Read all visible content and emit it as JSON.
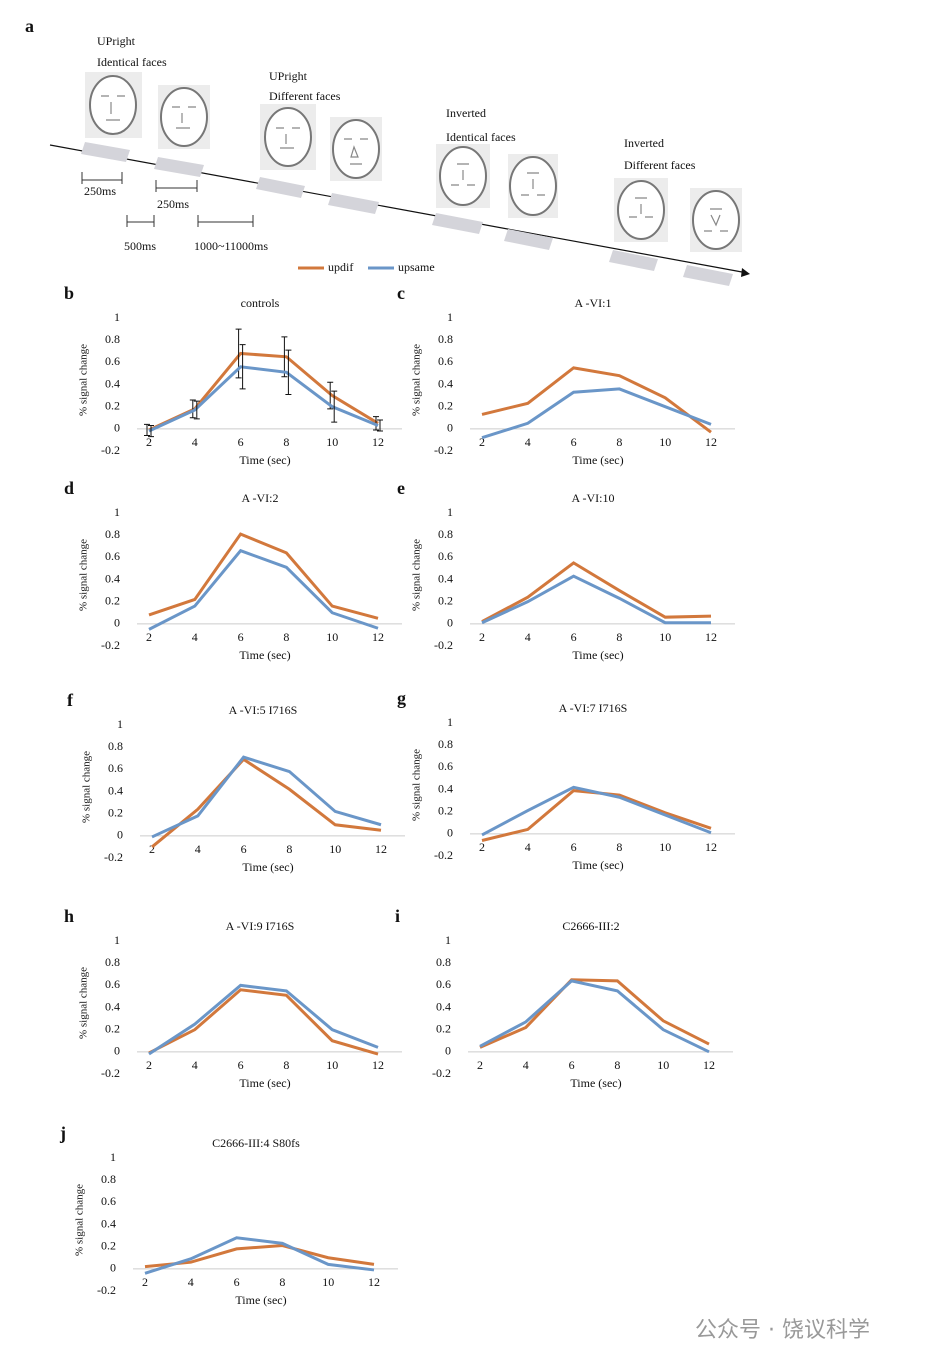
{
  "panel_a": {
    "label": "a",
    "conditions": [
      {
        "line1": "UPright",
        "line2": "Identical faces"
      },
      {
        "line1": "UPright",
        "line2": "Different faces"
      },
      {
        "line1": "Inverted",
        "line2": "Identical faces"
      },
      {
        "line1": "Inverted",
        "line2": "Different faces"
      }
    ],
    "timings": [
      "250ms",
      "250ms",
      "500ms",
      "1000~11000ms"
    ]
  },
  "legend": [
    {
      "name": "updif",
      "color": "#d2783c"
    },
    {
      "name": "upsame",
      "color": "#6a96c8"
    }
  ],
  "watermark": "公众号 · 饶议科学",
  "chart_data": [
    {
      "type": "line",
      "label": "b",
      "title": "controls",
      "xlabel": "Time (sec)",
      "ylabel": "% signal change",
      "categories": [
        "2",
        "4",
        "6",
        "8",
        "10",
        "12"
      ],
      "ylim": [
        -0.2,
        1
      ],
      "yticks": [
        -0.2,
        0,
        0.2,
        0.4,
        0.6,
        0.8,
        1
      ],
      "series": [
        {
          "values": [
            -0.01,
            0.18,
            0.68,
            0.65,
            0.3,
            0.05
          ],
          "errors": [
            0.05,
            0.08,
            0.22,
            0.18,
            0.12,
            0.06
          ]
        },
        {
          "values": [
            -0.02,
            0.17,
            0.56,
            0.51,
            0.2,
            0.03
          ],
          "errors": [
            0.05,
            0.08,
            0.2,
            0.2,
            0.14,
            0.05
          ]
        }
      ]
    },
    {
      "type": "line",
      "label": "c",
      "title": "A -VI:1",
      "xlabel": "Time (sec)",
      "ylabel": "% signal change",
      "categories": [
        "2",
        "4",
        "6",
        "8",
        "10",
        "12"
      ],
      "ylim": [
        -0.2,
        1
      ],
      "yticks": [
        -0.2,
        0,
        0.2,
        0.4,
        0.6,
        0.8,
        1
      ],
      "series": [
        {
          "values": [
            0.13,
            0.23,
            0.55,
            0.48,
            0.28,
            -0.03
          ]
        },
        {
          "values": [
            -0.08,
            0.05,
            0.33,
            0.36,
            0.2,
            0.04
          ]
        }
      ]
    },
    {
      "type": "line",
      "label": "d",
      "title": "A -VI:2",
      "xlabel": "Time (sec)",
      "ylabel": "% signal change",
      "categories": [
        "2",
        "4",
        "6",
        "8",
        "10",
        "12"
      ],
      "ylim": [
        -0.2,
        1
      ],
      "yticks": [
        -0.2,
        0,
        0.2,
        0.4,
        0.6,
        0.8,
        1
      ],
      "series": [
        {
          "values": [
            0.08,
            0.22,
            0.81,
            0.64,
            0.16,
            0.05
          ]
        },
        {
          "values": [
            -0.05,
            0.16,
            0.66,
            0.51,
            0.1,
            -0.04
          ]
        }
      ]
    },
    {
      "type": "line",
      "label": "e",
      "title": "A -VI:10",
      "xlabel": "Time (sec)",
      "ylabel": "% signal change",
      "categories": [
        "2",
        "4",
        "6",
        "8",
        "10",
        "12"
      ],
      "ylim": [
        -0.2,
        1
      ],
      "yticks": [
        -0.2,
        0,
        0.2,
        0.4,
        0.6,
        0.8,
        1
      ],
      "series": [
        {
          "values": [
            0.02,
            0.24,
            0.55,
            0.3,
            0.06,
            0.07
          ]
        },
        {
          "values": [
            0.01,
            0.2,
            0.43,
            0.23,
            0.01,
            0.01
          ]
        }
      ]
    },
    {
      "type": "line",
      "label": "f",
      "title": "A -VI:5  I716S",
      "xlabel": "Time (sec)",
      "ylabel": "% signal change",
      "categories": [
        "2",
        "4",
        "6",
        "8",
        "10",
        "12"
      ],
      "ylim": [
        -0.2,
        1
      ],
      "yticks": [
        -0.2,
        0,
        0.2,
        0.4,
        0.6,
        0.8,
        1
      ],
      "series": [
        {
          "values": [
            -0.1,
            0.24,
            0.69,
            0.42,
            0.1,
            0.05
          ]
        },
        {
          "values": [
            -0.01,
            0.18,
            0.71,
            0.58,
            0.22,
            0.1
          ]
        }
      ]
    },
    {
      "type": "line",
      "label": "g",
      "title": "A -VI:7   I716S",
      "xlabel": "Time (sec)",
      "ylabel": "% signal change",
      "categories": [
        "2",
        "4",
        "6",
        "8",
        "10",
        "12"
      ],
      "ylim": [
        -0.2,
        1
      ],
      "yticks": [
        -0.2,
        0,
        0.2,
        0.4,
        0.6,
        0.8,
        1
      ],
      "series": [
        {
          "values": [
            -0.06,
            0.04,
            0.39,
            0.35,
            0.19,
            0.05
          ]
        },
        {
          "values": [
            -0.01,
            0.21,
            0.42,
            0.33,
            0.17,
            0.01
          ]
        }
      ]
    },
    {
      "type": "line",
      "label": "h",
      "title": "A -VI:9   I716S",
      "xlabel": "Time (sec)",
      "ylabel": "% signal change",
      "categories": [
        "2",
        "4",
        "6",
        "8",
        "10",
        "12"
      ],
      "ylim": [
        -0.2,
        1
      ],
      "yticks": [
        -0.2,
        0,
        0.2,
        0.4,
        0.6,
        0.8,
        1
      ],
      "series": [
        {
          "values": [
            -0.01,
            0.2,
            0.56,
            0.51,
            0.1,
            -0.02
          ]
        },
        {
          "values": [
            -0.02,
            0.25,
            0.6,
            0.55,
            0.2,
            0.04
          ]
        }
      ]
    },
    {
      "type": "line",
      "label": "i",
      "title": "C2666-III:2",
      "xlabel": "Time (sec)",
      "ylabel": "",
      "categories": [
        "2",
        "4",
        "6",
        "8",
        "10",
        "12"
      ],
      "ylim": [
        -0.2,
        1
      ],
      "yticks": [
        -0.2,
        0,
        0.2,
        0.4,
        0.6,
        0.8,
        1
      ],
      "series": [
        {
          "values": [
            0.04,
            0.22,
            0.65,
            0.64,
            0.28,
            0.07
          ]
        },
        {
          "values": [
            0.05,
            0.27,
            0.64,
            0.55,
            0.2,
            0.0
          ]
        }
      ]
    },
    {
      "type": "line",
      "label": "j",
      "title": "C2666-III:4 S80fs",
      "xlabel": "Time (sec)",
      "ylabel": "% signal change",
      "categories": [
        "2",
        "4",
        "6",
        "8",
        "10",
        "12"
      ],
      "ylim": [
        -0.2,
        1
      ],
      "yticks": [
        -0.2,
        0,
        0.2,
        0.4,
        0.6,
        0.8,
        1
      ],
      "series": [
        {
          "values": [
            0.02,
            0.06,
            0.18,
            0.21,
            0.1,
            0.04
          ]
        },
        {
          "values": [
            -0.04,
            0.09,
            0.28,
            0.23,
            0.04,
            -0.01
          ]
        }
      ]
    }
  ]
}
